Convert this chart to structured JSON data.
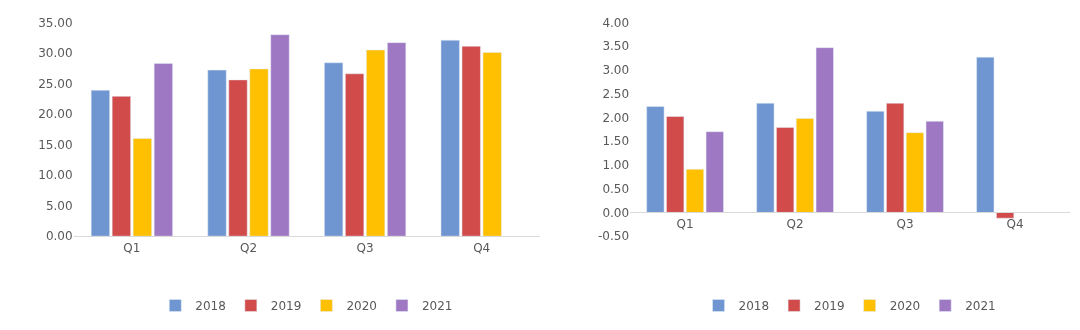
{
  "chart_data": [
    {
      "type": "bar",
      "categories": [
        "Q1",
        "Q2",
        "Q3",
        "Q4"
      ],
      "series": [
        {
          "name": "2018",
          "color": "#6f96d1",
          "values": [
            23.9,
            27.2,
            28.4,
            32.1
          ]
        },
        {
          "name": "2019",
          "color": "#d14b4b",
          "values": [
            22.9,
            25.6,
            26.6,
            31.1
          ]
        },
        {
          "name": "2020",
          "color": "#fec000",
          "values": [
            16.0,
            27.4,
            30.5,
            30.1
          ]
        },
        {
          "name": "2021",
          "color": "#9e78c2",
          "values": [
            28.3,
            33.0,
            31.7,
            null
          ]
        }
      ],
      "ylim": [
        0,
        35
      ],
      "yticks": [
        {
          "value": 0,
          "label": "0.00"
        },
        {
          "value": 5,
          "label": "5.00"
        },
        {
          "value": 10,
          "label": "10.00"
        },
        {
          "value": 15,
          "label": "15.00"
        },
        {
          "value": 20,
          "label": "20.00"
        },
        {
          "value": 25,
          "label": "25.00"
        },
        {
          "value": 30,
          "label": "30.00"
        },
        {
          "value": 35,
          "label": "35.00"
        }
      ],
      "legend": "bottom"
    },
    {
      "type": "bar",
      "categories": [
        "Q1",
        "Q2",
        "Q3",
        "Q4"
      ],
      "series": [
        {
          "name": "2018",
          "color": "#6f96d1",
          "values": [
            2.23,
            2.3,
            2.13,
            3.27
          ]
        },
        {
          "name": "2019",
          "color": "#d14b4b",
          "values": [
            2.02,
            1.79,
            2.3,
            -0.12
          ]
        },
        {
          "name": "2020",
          "color": "#fec000",
          "values": [
            0.91,
            1.98,
            1.68,
            null
          ]
        },
        {
          "name": "2021",
          "color": "#9e78c2",
          "values": [
            1.7,
            3.47,
            1.92,
            null
          ]
        }
      ],
      "ylim": [
        -0.5,
        4
      ],
      "yticks": [
        {
          "value": -0.5,
          "label": "-0.50"
        },
        {
          "value": 0,
          "label": "0.00"
        },
        {
          "value": 0.5,
          "label": "0.50"
        },
        {
          "value": 1,
          "label": "1.00"
        },
        {
          "value": 1.5,
          "label": "1.50"
        },
        {
          "value": 2,
          "label": "2.00"
        },
        {
          "value": 2.5,
          "label": "2.50"
        },
        {
          "value": 3,
          "label": "3.00"
        },
        {
          "value": 3.5,
          "label": "3.50"
        },
        {
          "value": 4,
          "label": "4.00"
        }
      ],
      "legend": "bottom"
    }
  ]
}
